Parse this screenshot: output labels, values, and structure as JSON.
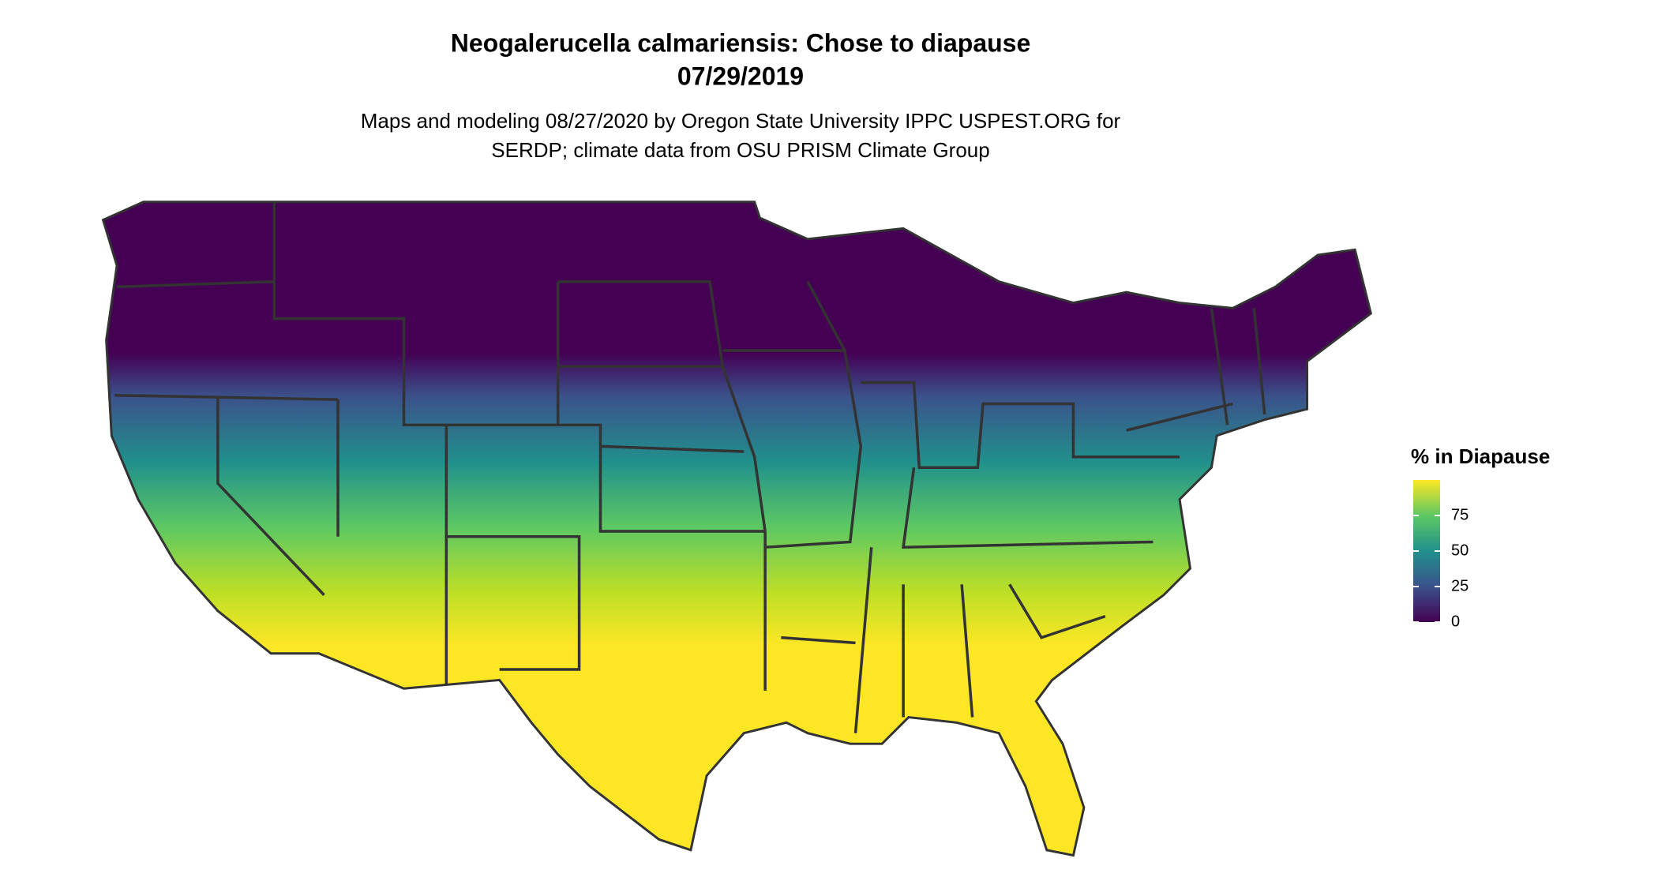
{
  "title": [
    "Neogalerucella calmariensis: Chose to diapause",
    "07/29/2019"
  ],
  "subtitle": [
    "Maps and modeling 08/27/2020 by Oregon State University IPPC USPEST.ORG for",
    "SERDP; climate data from OSU PRISM Climate Group"
  ],
  "legend": {
    "title": "% in Diapause",
    "range": [
      0,
      100
    ],
    "ticks": [
      0,
      25,
      50,
      75
    ],
    "colors": [
      "#440154",
      "#3b528b",
      "#21908c",
      "#5dc863",
      "#fde725"
    ]
  }
}
